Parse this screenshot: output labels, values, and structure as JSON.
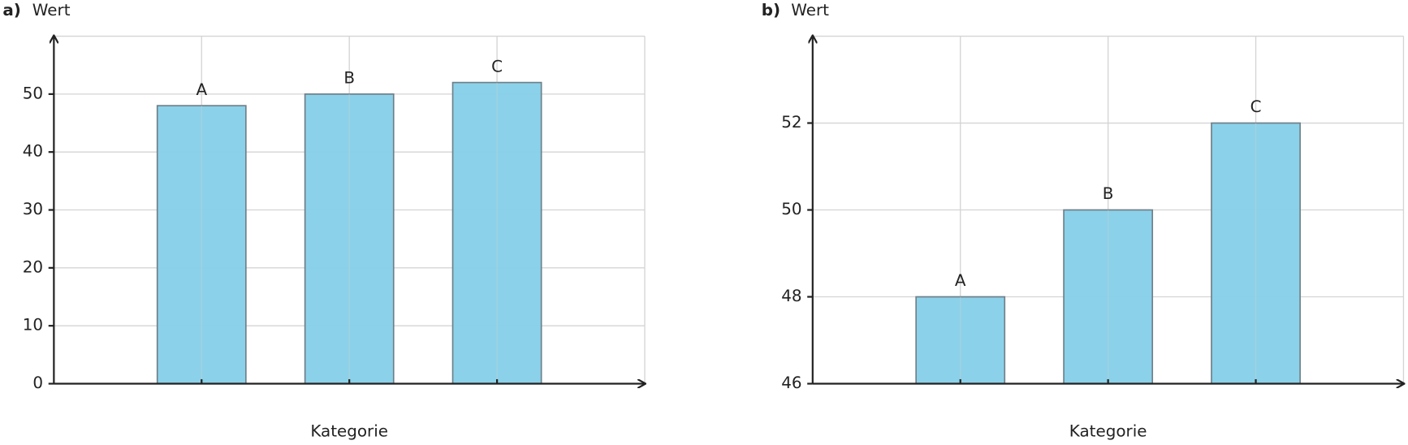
{
  "chart_data": [
    {
      "type": "bar",
      "panel_label": "a)",
      "ylabel": "Wert",
      "xlabel": "Kategorie",
      "categories": [
        "A",
        "B",
        "C"
      ],
      "values": [
        48,
        50,
        52
      ],
      "color": "#87cfe8",
      "ylim": [
        0,
        60
      ],
      "yticks": [
        0,
        10,
        20,
        30,
        40,
        50
      ],
      "grid": true
    },
    {
      "type": "bar",
      "panel_label": "b)",
      "ylabel": "Wert",
      "xlabel": "Kategorie",
      "categories": [
        "A",
        "B",
        "C"
      ],
      "values": [
        48,
        50,
        52
      ],
      "color": "#87cfe8",
      "ylim": [
        46,
        54
      ],
      "yticks": [
        46,
        48,
        50,
        52
      ],
      "grid": true
    }
  ]
}
